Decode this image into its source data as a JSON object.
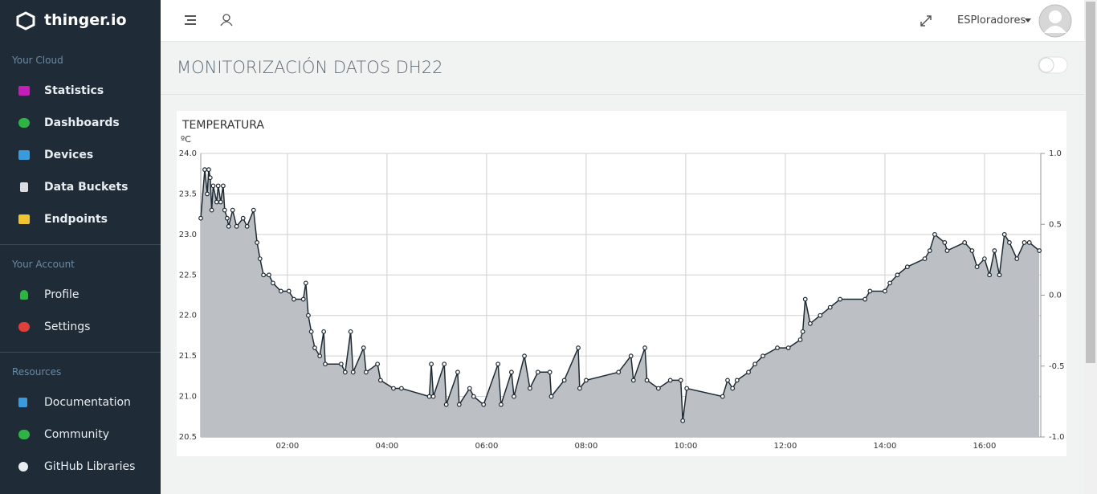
{
  "sidebar": {
    "brand": "thinger.io",
    "sections": [
      {
        "title": "Your Cloud",
        "items": [
          "Statistics",
          "Dashboards",
          "Devices",
          "Data Buckets",
          "Endpoints"
        ]
      },
      {
        "title": "Your Account",
        "items": [
          "Profile",
          "Settings"
        ]
      },
      {
        "title": "Resources",
        "items": [
          "Documentation",
          "Community",
          "GitHub Libraries"
        ]
      }
    ]
  },
  "topbar": {
    "user": "ESPloradores"
  },
  "page_title": "MONITORIZACIÓN DATOS DH22",
  "chart_data": {
    "type": "line",
    "title": "TEMPERATURA",
    "y_label": "ºC",
    "color": "#1e2a33",
    "area_color": "#bcc0c4",
    "grid": true,
    "x": [
      0.26,
      0.34,
      0.39,
      0.42,
      0.45,
      0.48,
      0.51,
      0.58,
      0.61,
      0.66,
      0.71,
      0.74,
      0.79,
      0.82,
      0.9,
      0.98,
      1.11,
      1.19,
      1.32,
      1.39,
      1.45,
      1.52,
      1.63,
      1.71,
      1.87,
      2.03,
      2.13,
      2.32,
      2.37,
      2.42,
      2.48,
      2.55,
      2.65,
      2.73,
      2.76,
      3.08,
      3.16,
      3.27,
      3.32,
      3.53,
      3.58,
      3.81,
      3.87,
      4.13,
      4.29,
      4.85,
      4.89,
      4.93,
      5.15,
      5.19,
      5.42,
      5.45,
      5.66,
      5.74,
      5.94,
      6.23,
      6.29,
      6.5,
      6.55,
      6.76,
      6.87,
      7.03,
      7.27,
      7.3,
      7.56,
      7.84,
      7.87,
      8.0,
      8.65,
      8.9,
      8.95,
      9.18,
      9.22,
      9.45,
      9.69,
      9.9,
      9.94,
      10.02,
      10.74,
      10.84,
      10.94,
      11.03,
      11.26,
      11.39,
      11.55,
      11.84,
      12.06,
      12.3,
      12.35,
      12.4,
      12.5,
      12.7,
      12.9,
      13.1,
      13.6,
      13.7,
      14.0,
      14.1,
      14.25,
      14.45,
      14.8,
      14.9,
      15.0,
      15.2,
      15.25,
      15.6,
      15.75,
      15.85,
      16.0,
      16.1,
      16.2,
      16.3,
      16.4,
      16.5,
      16.65,
      16.8,
      16.9,
      17.1
    ],
    "values": [
      23.2,
      23.8,
      23.5,
      23.8,
      23.7,
      23.3,
      23.6,
      23.4,
      23.6,
      23.4,
      23.6,
      23.3,
      23.2,
      23.1,
      23.3,
      23.1,
      23.2,
      23.1,
      23.3,
      22.9,
      22.7,
      22.5,
      22.5,
      22.4,
      22.3,
      22.3,
      22.2,
      22.2,
      22.4,
      22.0,
      21.8,
      21.6,
      21.5,
      21.8,
      21.4,
      21.4,
      21.3,
      21.8,
      21.3,
      21.6,
      21.3,
      21.4,
      21.2,
      21.1,
      21.1,
      21.0,
      21.4,
      21.0,
      21.4,
      20.9,
      21.3,
      20.9,
      21.1,
      21.0,
      20.9,
      21.4,
      20.9,
      21.3,
      21.0,
      21.5,
      21.1,
      21.3,
      21.3,
      21.0,
      21.2,
      21.6,
      21.1,
      21.2,
      21.3,
      21.5,
      21.2,
      21.6,
      21.2,
      21.1,
      21.2,
      21.2,
      20.7,
      21.1,
      21.0,
      21.2,
      21.1,
      21.2,
      21.3,
      21.4,
      21.5,
      21.6,
      21.6,
      21.7,
      21.8,
      22.2,
      21.9,
      22.0,
      22.1,
      22.2,
      22.2,
      22.3,
      22.3,
      22.4,
      22.5,
      22.6,
      22.7,
      22.8,
      23.0,
      22.9,
      22.8,
      22.9,
      22.8,
      22.6,
      22.7,
      22.5,
      22.8,
      22.5,
      23.0,
      22.9,
      22.7,
      22.9,
      22.9,
      22.8
    ],
    "xlim": [
      0.26,
      17.13
    ],
    "xticks": [
      {
        "value": 2,
        "label": "02:00"
      },
      {
        "value": 4,
        "label": "04:00"
      },
      {
        "value": 6,
        "label": "06:00"
      },
      {
        "value": 8,
        "label": "08:00"
      },
      {
        "value": 10,
        "label": "10:00"
      },
      {
        "value": 12,
        "label": "12:00"
      },
      {
        "value": 14,
        "label": "14:00"
      },
      {
        "value": 16,
        "label": "16:00"
      }
    ],
    "ylim": [
      20.5,
      24.0
    ],
    "yticks": [
      20.5,
      {
        "value": 21,
        "label": "21.0"
      },
      21.5,
      {
        "value": 22,
        "label": "22.0"
      },
      22.5,
      {
        "value": 23,
        "label": "23.0"
      },
      23.5,
      {
        "value": 24,
        "label": "24.0"
      }
    ],
    "y2lim": [
      -1,
      1
    ],
    "y2ticks": [
      {
        "value": -1,
        "label": "-1.0"
      },
      -0.5,
      {
        "value": 0,
        "label": "0.0"
      },
      0.5,
      {
        "value": 1,
        "label": "1.0"
      }
    ]
  }
}
